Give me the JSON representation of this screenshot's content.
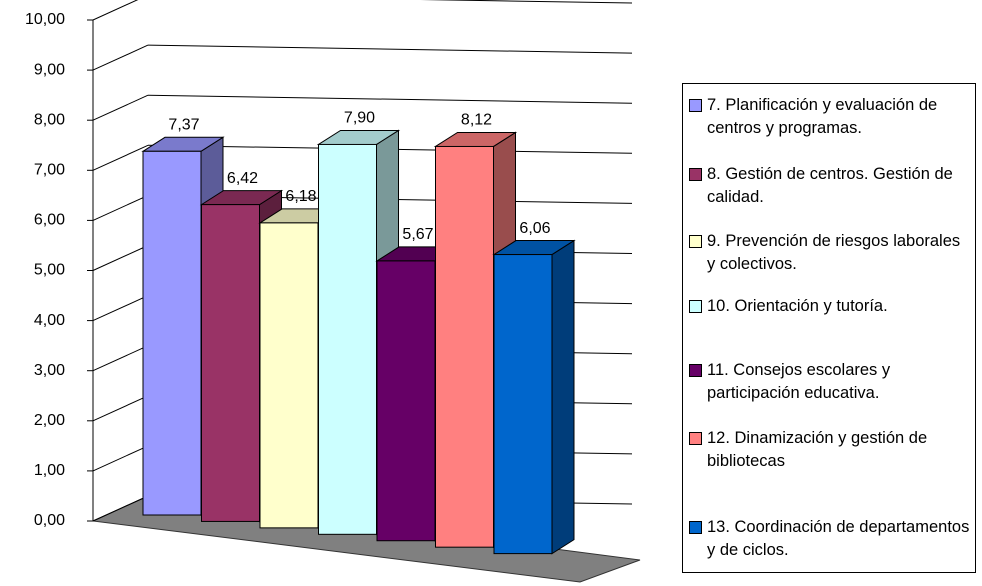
{
  "chart_data": {
    "type": "bar",
    "series": [
      {
        "name": "7. Planificación y evaluación de centros y programas.",
        "color": "#9999ff",
        "values": [
          7.37
        ],
        "value_labels": [
          "7,37"
        ]
      },
      {
        "name": "8. Gestión de centros. Gestión de calidad.",
        "color": "#993366",
        "values": [
          6.42
        ],
        "value_labels": [
          "6,42"
        ]
      },
      {
        "name": "9. Prevención de riesgos laborales y colectivos.",
        "color": "#ffffcc",
        "values": [
          6.18
        ],
        "value_labels": [
          "6,18"
        ]
      },
      {
        "name": "10. Orientación y tutoría.",
        "color": "#ccffff",
        "values": [
          7.9
        ],
        "value_labels": [
          "7,90"
        ]
      },
      {
        "name": "11. Consejos escolares y participación educativa.",
        "color": "#660066",
        "values": [
          5.67
        ],
        "value_labels": [
          "5,67"
        ]
      },
      {
        "name": "12. Dinamización y gestión de bibliotecas",
        "color": "#ff8080",
        "values": [
          8.12
        ],
        "value_labels": [
          "8,12"
        ]
      },
      {
        "name": "13. Coordinación de departamentos y de ciclos.",
        "color": "#0066cc",
        "values": [
          6.06
        ],
        "value_labels": [
          "6,06"
        ]
      }
    ],
    "ylim": [
      0,
      10
    ],
    "yticks": [
      {
        "value": 0,
        "label": "0,00"
      },
      {
        "value": 1,
        "label": "1,00"
      },
      {
        "value": 2,
        "label": "2,00"
      },
      {
        "value": 3,
        "label": "3,00"
      },
      {
        "value": 4,
        "label": "4,00"
      },
      {
        "value": 5,
        "label": "5,00"
      },
      {
        "value": 6,
        "label": "6,00"
      },
      {
        "value": 7,
        "label": "7,00"
      },
      {
        "value": 8,
        "label": "8,00"
      },
      {
        "value": 9,
        "label": "9,00"
      },
      {
        "value": 10,
        "label": "10,00"
      }
    ],
    "grid": true,
    "legend": "right"
  }
}
